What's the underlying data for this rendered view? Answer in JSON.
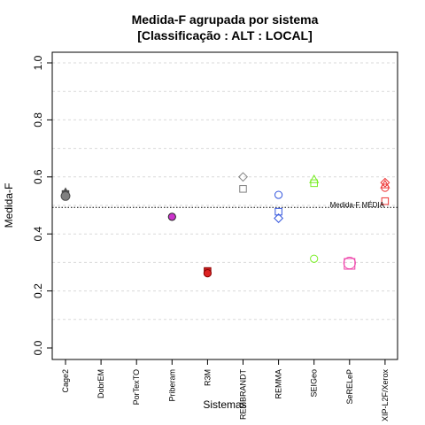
{
  "chart_data": {
    "type": "scatter",
    "title_line1": "Medida-F agrupada por sistema",
    "title_line2": "[Classificação : ALT : LOCAL]",
    "xlabel": "Sistemas",
    "ylabel": "Medida-F",
    "ylim": [
      0,
      1
    ],
    "yticks": [
      {
        "value": 0.0,
        "label": "0.0"
      },
      {
        "value": 0.2,
        "label": "0.2"
      },
      {
        "value": 0.4,
        "label": "0.4"
      },
      {
        "value": 0.6,
        "label": "0.6"
      },
      {
        "value": 0.8,
        "label": "0.8"
      },
      {
        "value": 1.0,
        "label": "1.0"
      }
    ],
    "grid_values": [
      0.1,
      0.2,
      0.3,
      0.4,
      0.5,
      0.6,
      0.7,
      0.8,
      0.9,
      1.0
    ],
    "grid": true,
    "categories": [
      "Cage2",
      "DobrEM",
      "PorTexTO",
      "Priberam",
      "R3M",
      "REMBRANDT",
      "REMMA",
      "SEIGeo",
      "SeRELeP",
      "XIP-L2F/Xerox"
    ],
    "reference_line": {
      "value": 0.493,
      "label": "Medida-F MÉDIA"
    },
    "points": [
      {
        "cat": 0,
        "y": 0.545,
        "shape": "triangle",
        "color": "#4d4d4d",
        "fill": "#4d4d4d",
        "size": 1
      },
      {
        "cat": 0,
        "y": 0.54,
        "shape": "square",
        "color": "#4d4d4d",
        "fill": "#4d4d4d",
        "size": 1
      },
      {
        "cat": 0,
        "y": 0.535,
        "shape": "diamond",
        "color": "#4d4d4d",
        "fill": "#4d4d4d",
        "size": 1
      },
      {
        "cat": 0,
        "y": 0.533,
        "shape": "circle",
        "color": "#4d4d4d",
        "fill": "#808080",
        "size": 1.2
      },
      {
        "cat": 3,
        "y": 0.46,
        "shape": "circle",
        "color": "#222222",
        "fill": "#cc33cc",
        "size": 1
      },
      {
        "cat": 4,
        "y": 0.27,
        "shape": "square",
        "color": "#8b0000",
        "fill": "#cc2222",
        "size": 1
      },
      {
        "cat": 4,
        "y": 0.262,
        "shape": "circle",
        "color": "#8b0000",
        "fill": "#dd2222",
        "size": 1
      },
      {
        "cat": 5,
        "y": 0.6,
        "shape": "diamond",
        "color": "#808080",
        "fill": "none",
        "size": 1
      },
      {
        "cat": 5,
        "y": 0.558,
        "shape": "square",
        "color": "#808080",
        "fill": "none",
        "size": 1
      },
      {
        "cat": 6,
        "y": 0.537,
        "shape": "circle",
        "color": "#3355dd",
        "fill": "none",
        "size": 1
      },
      {
        "cat": 6,
        "y": 0.478,
        "shape": "square",
        "color": "#3355dd",
        "fill": "none",
        "size": 1
      },
      {
        "cat": 6,
        "y": 0.455,
        "shape": "diamond",
        "color": "#3355dd",
        "fill": "none",
        "size": 1
      },
      {
        "cat": 7,
        "y": 0.59,
        "shape": "triangle",
        "color": "#77ee22",
        "fill": "none",
        "size": 1
      },
      {
        "cat": 7,
        "y": 0.578,
        "shape": "square",
        "color": "#77ee22",
        "fill": "none",
        "size": 1
      },
      {
        "cat": 7,
        "y": 0.313,
        "shape": "circle",
        "color": "#77ee22",
        "fill": "none",
        "size": 1
      },
      {
        "cat": 8,
        "y": 0.298,
        "shape": "circle",
        "color": "#ee44aa",
        "fill": "none",
        "size": 1.6
      },
      {
        "cat": 8,
        "y": 0.295,
        "shape": "square",
        "color": "#ee44aa",
        "fill": "none",
        "size": 1.6
      },
      {
        "cat": 9,
        "y": 0.58,
        "shape": "diamond",
        "color": "#ee3333",
        "fill": "none",
        "size": 1
      },
      {
        "cat": 9,
        "y": 0.572,
        "shape": "triangle",
        "color": "#ee3333",
        "fill": "none",
        "size": 1
      },
      {
        "cat": 9,
        "y": 0.562,
        "shape": "circle",
        "color": "#ee3333",
        "fill": "none",
        "size": 1
      },
      {
        "cat": 9,
        "y": 0.515,
        "shape": "square",
        "color": "#ee3333",
        "fill": "none",
        "size": 1
      }
    ]
  }
}
